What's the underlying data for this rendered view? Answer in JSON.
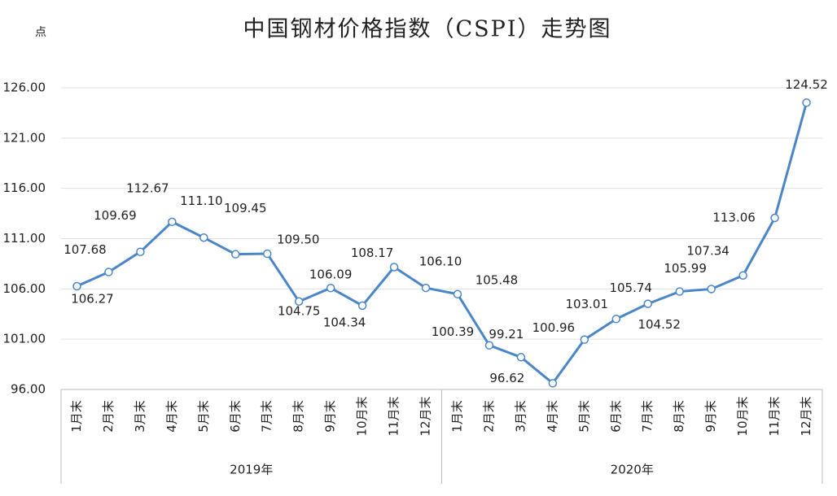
{
  "chart_data": {
    "type": "line",
    "title": "中国钢材价格指数（CSPI）走势图",
    "y_label": "点",
    "categories": [
      "1月末",
      "2月末",
      "3月末",
      "4月末",
      "5月末",
      "6月末",
      "7月末",
      "8月末",
      "9月末",
      "10月末",
      "11月末",
      "12月末",
      "1月末",
      "2月末",
      "3月末",
      "4月末",
      "5月末",
      "6月末",
      "7月末",
      "8月末",
      "9月末",
      "10月末",
      "11月末",
      "12月末"
    ],
    "groups": [
      "2019年",
      "2020年"
    ],
    "values": [
      106.27,
      107.68,
      109.69,
      112.67,
      111.1,
      109.45,
      109.5,
      104.75,
      106.09,
      104.34,
      108.17,
      106.1,
      105.48,
      100.39,
      99.21,
      96.62,
      100.96,
      103.01,
      104.52,
      105.74,
      105.99,
      107.34,
      113.06,
      124.52
    ],
    "value_labels": [
      "106.27",
      "107.68",
      "109.69",
      "112.67",
      "111.10",
      "109.45",
      "109.50",
      "104.75",
      "106.09",
      "104.34",
      "108.17",
      "106.10",
      "105.48",
      "100.39",
      "99.21",
      "96.62",
      "100.96",
      "103.01",
      "104.52",
      "105.74",
      "105.99",
      "107.34",
      "113.06",
      "124.52"
    ],
    "color": "#4a86c8",
    "ylim": [
      96,
      126
    ],
    "yticks": [
      {
        "value": 96,
        "label": "96.00"
      },
      {
        "value": 101,
        "label": "101.00"
      },
      {
        "value": 106,
        "label": "106.00"
      },
      {
        "value": 111,
        "label": "111.00"
      },
      {
        "value": 116,
        "label": "116.00"
      },
      {
        "value": 121,
        "label": "121.00"
      },
      {
        "value": 126,
        "label": "126.00"
      }
    ],
    "grid": true
  }
}
